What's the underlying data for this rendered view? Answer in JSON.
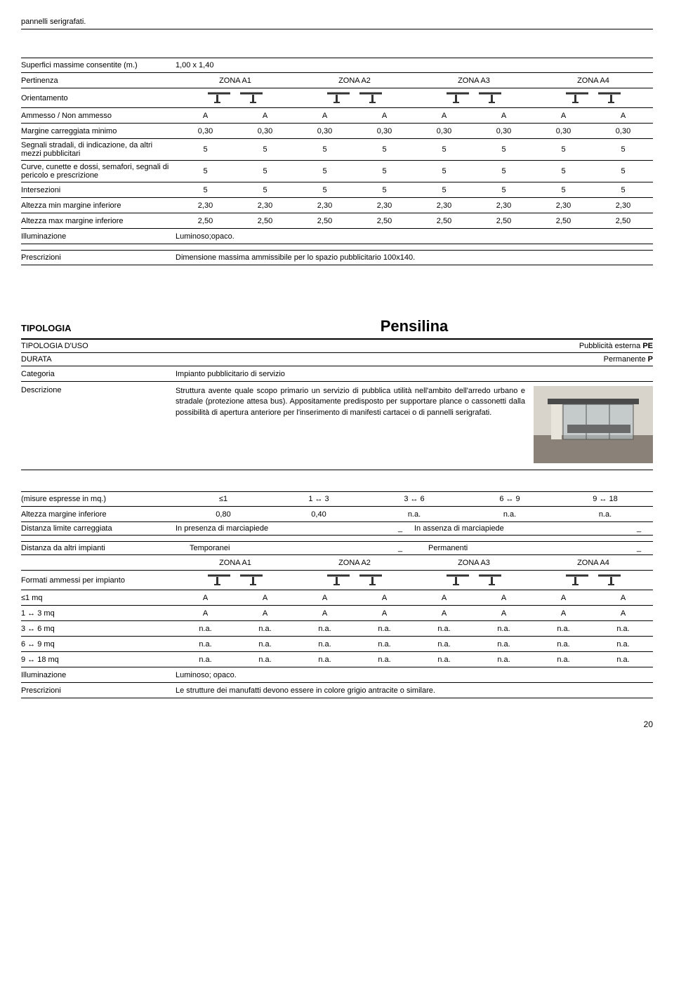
{
  "top_note": "pannelli serigrafati.",
  "zones": [
    "ZONA A1",
    "ZONA A2",
    "ZONA A3",
    "ZONA A4"
  ],
  "section1": {
    "superfici_label": "Superfici massime consentite (m.)",
    "superfici_value": "1,00 x 1,40",
    "pertinenza_label": "Pertinenza",
    "orientamento_label": "Orientamento",
    "rows": [
      {
        "label": "Ammesso / Non ammesso",
        "cells": [
          "A",
          "A",
          "A",
          "A",
          "A",
          "A",
          "A",
          "A"
        ]
      },
      {
        "label": "Margine carreggiata minimo",
        "cells": [
          "0,30",
          "0,30",
          "0,30",
          "0,30",
          "0,30",
          "0,30",
          "0,30",
          "0,30"
        ]
      },
      {
        "label": "Segnali stradali, di indicazione, da altri mezzi pubblicitari",
        "cells": [
          "5",
          "5",
          "5",
          "5",
          "5",
          "5",
          "5",
          "5"
        ]
      },
      {
        "label": "Curve, cunette e dossi, semafori, segnali di pericolo e prescrizione",
        "cells": [
          "5",
          "5",
          "5",
          "5",
          "5",
          "5",
          "5",
          "5"
        ]
      },
      {
        "label": "Intersezioni",
        "cells": [
          "5",
          "5",
          "5",
          "5",
          "5",
          "5",
          "5",
          "5"
        ]
      },
      {
        "label": "Altezza min margine inferiore",
        "cells": [
          "2,30",
          "2,30",
          "2,30",
          "2,30",
          "2,30",
          "2,30",
          "2,30",
          "2,30"
        ]
      },
      {
        "label": "Altezza max margine inferiore",
        "cells": [
          "2,50",
          "2,50",
          "2,50",
          "2,50",
          "2,50",
          "2,50",
          "2,50",
          "2,50"
        ]
      }
    ],
    "illum_label": "Illuminazione",
    "illum_value": "Luminoso;opaco.",
    "presc_label": "Prescrizioni",
    "presc_value": "Dimensione massima ammissibile per lo spazio pubblicitario 100x140."
  },
  "section2": {
    "tipologia_label": "TIPOLOGIA",
    "tipologia_value": "Pensilina",
    "tipo_uso_label": "TIPOLOGIA D'USO",
    "tipo_uso_value": "Pubblicità esterna PE",
    "durata_label": "DURATA",
    "durata_value": "Permanente P",
    "categoria_label": "Categoria",
    "categoria_value": "Impianto pubblicitario di servizio",
    "descrizione_label": "Descrizione",
    "descrizione_value": "Struttura avente quale scopo primario un servizio di pubblica utilità nell'ambito dell'arredo urbano e stradale (protezione attesa bus). Appositamente predisposto per supportare plance o cassonetti dalla possibilità di apertura anteriore per l'inserimento di manifesti cartacei o di pannelli serigrafati.",
    "misure_label": "(misure espresse in mq.)",
    "misure_cols": [
      "≤1",
      "1 ↔ 3",
      "3 ↔ 6",
      "6 ↔ 9",
      "9 ↔ 18"
    ],
    "altezza_label": "Altezza margine inferiore",
    "altezza_cells": [
      "0,80",
      "0,40",
      "n.a.",
      "n.a.",
      "n.a."
    ],
    "distanza_carr_label": "Distanza limite carreggiata",
    "distanza_carr_presenza": "In presenza di marciapiede",
    "distanza_carr_assenza": "In assenza di marciapiede",
    "distanza_altri_label": "Distanza da altri impianti",
    "distanza_altri_temp": "Temporanei",
    "distanza_altri_perm": "Permanenti",
    "formati_label": "Formati ammessi per impianto",
    "size_rows": [
      {
        "label": "≤1 mq",
        "cells": [
          "A",
          "A",
          "A",
          "A",
          "A",
          "A",
          "A",
          "A"
        ]
      },
      {
        "label": "1 ↔ 3 mq",
        "cells": [
          "A",
          "A",
          "A",
          "A",
          "A",
          "A",
          "A",
          "A"
        ]
      },
      {
        "label": "3 ↔ 6 mq",
        "cells": [
          "n.a.",
          "n.a.",
          "n.a.",
          "n.a.",
          "n.a.",
          "n.a.",
          "n.a.",
          "n.a."
        ]
      },
      {
        "label": "6 ↔ 9 mq",
        "cells": [
          "n.a.",
          "n.a.",
          "n.a.",
          "n.a.",
          "n.a.",
          "n.a.",
          "n.a.",
          "n.a."
        ]
      },
      {
        "label": "9 ↔ 18 mq",
        "cells": [
          "n.a.",
          "n.a.",
          "n.a.",
          "n.a.",
          "n.a.",
          "n.a.",
          "n.a.",
          "n.a."
        ]
      }
    ],
    "illum_label": "Illuminazione",
    "illum_value": "Luminoso; opaco.",
    "presc_label": "Prescrizioni",
    "presc_value": "Le strutture dei manufatti devono essere in colore grigio antracite o similare."
  },
  "page_number": "20",
  "dash": "_",
  "icon_colors": {
    "stroke": "#333333",
    "fill": "#333333"
  }
}
